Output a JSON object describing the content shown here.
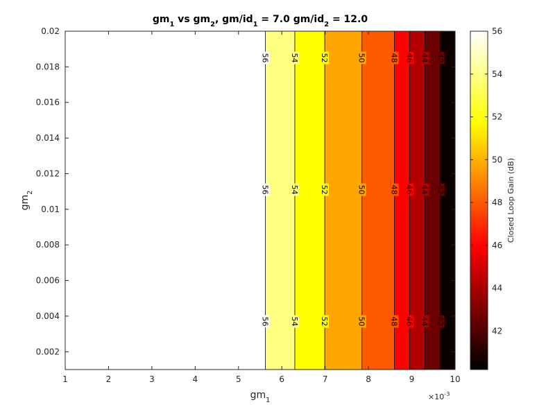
{
  "chart_data": {
    "type": "heatmap",
    "title": {
      "parts": [
        {
          "text": "gm",
          "sub": false
        },
        {
          "text": "1",
          "sub": true
        },
        {
          "text": " vs gm",
          "sub": false
        },
        {
          "text": "2",
          "sub": true
        },
        {
          "text": ", gm/id",
          "sub": false
        },
        {
          "text": "1",
          "sub": true
        },
        {
          "text": " = 7.0 gm/id",
          "sub": false
        },
        {
          "text": "2",
          "sub": true
        },
        {
          "text": " = 12.0",
          "sub": false
        }
      ]
    },
    "xlabel": {
      "base": "gm",
      "sub": "1"
    },
    "ylabel": {
      "base": "gm",
      "sub": "2"
    },
    "x_exponent_label": {
      "base": "×10",
      "sup": "-3"
    },
    "xlim": [
      1,
      10
    ],
    "ylim": [
      0.001,
      0.02
    ],
    "xticks": [
      1,
      2,
      3,
      4,
      5,
      6,
      7,
      8,
      9,
      10
    ],
    "xtick_labels": [
      "1",
      "2",
      "3",
      "4",
      "5",
      "6",
      "7",
      "8",
      "9",
      "10"
    ],
    "yticks": [
      0.002,
      0.004,
      0.006,
      0.008,
      0.01,
      0.012,
      0.014,
      0.016,
      0.018,
      0.02
    ],
    "ytick_labels": [
      "0.002",
      "0.004",
      "0.006",
      "0.008",
      "0.01",
      "0.012",
      "0.014",
      "0.016",
      "0.018",
      "0.02"
    ],
    "colorbar": {
      "label": "Closed Loop Gain (dB)",
      "range": [
        40.2,
        56
      ],
      "ticks": [
        42,
        44,
        46,
        48,
        50,
        52,
        54,
        56
      ],
      "colormap": "hot"
    },
    "bands": [
      {
        "x_from": 1.0,
        "x_to": 5.62,
        "value": 56.5,
        "color": "#ffffff"
      },
      {
        "x_from": 5.62,
        "x_to": 6.3,
        "value": 55,
        "color": "#ffff80"
      },
      {
        "x_from": 6.3,
        "x_to": 6.99,
        "value": 53,
        "color": "#ffff00"
      },
      {
        "x_from": 6.99,
        "x_to": 7.85,
        "value": 51,
        "color": "#ffa500"
      },
      {
        "x_from": 7.85,
        "x_to": 8.6,
        "value": 49,
        "color": "#ff5a00"
      },
      {
        "x_from": 8.6,
        "x_to": 8.95,
        "value": 47,
        "color": "#ff0000"
      },
      {
        "x_from": 8.95,
        "x_to": 9.3,
        "value": 45,
        "color": "#b40000"
      },
      {
        "x_from": 9.3,
        "x_to": 9.66,
        "value": 43,
        "color": "#6a0000"
      },
      {
        "x_from": 9.66,
        "x_to": 10.0,
        "value": 41,
        "color": "#0d0000"
      }
    ],
    "contours": [
      {
        "level": 56,
        "x": 5.62,
        "label": "56"
      },
      {
        "level": 54,
        "x": 6.3,
        "label": "54"
      },
      {
        "level": 52,
        "x": 6.99,
        "label": "52"
      },
      {
        "level": 50,
        "x": 7.85,
        "label": "50"
      },
      {
        "level": 48,
        "x": 8.6,
        "label": "48"
      },
      {
        "level": 46,
        "x": 8.95,
        "label": "46"
      },
      {
        "level": 44,
        "x": 9.3,
        "label": "44"
      },
      {
        "level": 42,
        "x": 9.66,
        "label": "42"
      }
    ],
    "contour_label_y": [
      0.0185,
      0.0111,
      0.0037
    ],
    "grid": false
  }
}
